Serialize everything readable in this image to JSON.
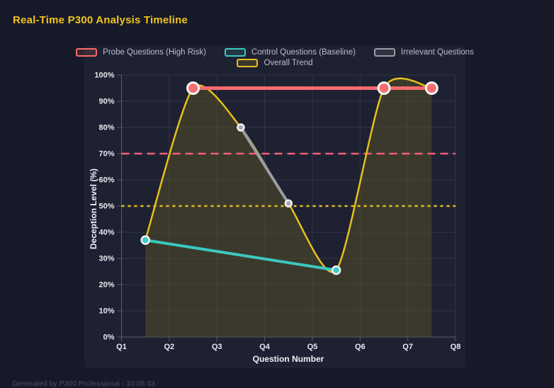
{
  "page": {
    "title": "Real-Time P300 Analysis Timeline",
    "footer": "Generated by P300 Professional - 10:05:43"
  },
  "colors": {
    "page_bg": "#161928",
    "panel_bg": "#1e2132",
    "title": "#f2c41d",
    "grid": "rgba(255,255,255,0.09)",
    "axis_border": "rgba(255,255,255,0.20)",
    "tick_mark": "rgba(255,255,255,0.25)",
    "tick_text": "#e8e9ee",
    "axis_title_text": "#f0f1f6",
    "legend_text": "#bcbec8",
    "footer_text": "#4a4f66",
    "point_ring": "#f2f3f5"
  },
  "legend": {
    "items": [
      {
        "label": "Probe Questions (High Risk)",
        "color": "#f56c6c",
        "fill": "rgba(245,108,108,0.14)"
      },
      {
        "label": "Control Questions (Baseline)",
        "color": "#3cc8bf",
        "fill": "rgba(60,200,191,0.14)"
      },
      {
        "label": "Irrelevant Questions",
        "color": "#9a9aa2",
        "fill": "rgba(154,154,162,0.14)"
      },
      {
        "label": "Overall Trend",
        "color": "#e5c11a",
        "fill": "rgba(229,193,26,0.14)"
      }
    ]
  },
  "chart_data": {
    "type": "line",
    "title": "Real-Time P300 Analysis Timeline",
    "xlabel": "Question Number",
    "ylabel": "Deception Level (%)",
    "x_range": [
      1,
      8
    ],
    "ylim": [
      0,
      100
    ],
    "grid": true,
    "legend_position": "top",
    "x_ticks": [
      {
        "value": 1,
        "label": "Q1"
      },
      {
        "value": 2,
        "label": "Q2"
      },
      {
        "value": 3,
        "label": "Q3"
      },
      {
        "value": 4,
        "label": "Q4"
      },
      {
        "value": 5,
        "label": "Q5"
      },
      {
        "value": 6,
        "label": "Q6"
      },
      {
        "value": 7,
        "label": "Q7"
      },
      {
        "value": 8,
        "label": "Q8"
      }
    ],
    "y_ticks": [
      {
        "value": 0,
        "label": "0%"
      },
      {
        "value": 10,
        "label": "10%"
      },
      {
        "value": 20,
        "label": "20%"
      },
      {
        "value": 30,
        "label": "30%"
      },
      {
        "value": 40,
        "label": "40%"
      },
      {
        "value": 50,
        "label": "50%"
      },
      {
        "value": 60,
        "label": "60%"
      },
      {
        "value": 70,
        "label": "70%"
      },
      {
        "value": 80,
        "label": "80%"
      },
      {
        "value": 90,
        "label": "90%"
      },
      {
        "value": 100,
        "label": "100%"
      }
    ],
    "series": [
      {
        "name": "Overall Trend",
        "id": "overall-trend",
        "color": "#e5c11a",
        "line_width": 2.5,
        "smooth": true,
        "area_fill": "#585125",
        "area_opacity": 0.5,
        "point_radius": 0,
        "points": [
          {
            "x": 1.5,
            "y": 37
          },
          {
            "x": 2.5,
            "y": 95
          },
          {
            "x": 3.5,
            "y": 80
          },
          {
            "x": 4.5,
            "y": 51
          },
          {
            "x": 5.5,
            "y": 25.5
          },
          {
            "x": 6.5,
            "y": 95
          },
          {
            "x": 7.5,
            "y": 95
          }
        ]
      },
      {
        "name": "Irrelevant Questions",
        "id": "irrelevant-questions",
        "color": "#9a9aa2",
        "point_color": "#a9a9b1",
        "line_width": 4,
        "point_radius": 4.5,
        "point_ring_width": 2.5,
        "points": [
          {
            "x": 3.5,
            "y": 80
          },
          {
            "x": 4.5,
            "y": 51
          }
        ]
      },
      {
        "name": "Control Questions (Baseline)",
        "id": "control-questions",
        "color": "#3cc8bf",
        "point_color": "#3fcdc4",
        "line_width": 4,
        "point_radius": 5.5,
        "point_ring_width": 2.5,
        "points": [
          {
            "x": 1.5,
            "y": 37
          },
          {
            "x": 5.5,
            "y": 25.5
          }
        ]
      },
      {
        "name": "Probe Questions (High Risk)",
        "id": "probe-questions",
        "color": "#f56c6c",
        "point_color": "#f56e6e",
        "line_width": 5,
        "point_radius": 8,
        "point_ring_width": 3,
        "points": [
          {
            "x": 2.5,
            "y": 95
          },
          {
            "x": 6.5,
            "y": 95
          },
          {
            "x": 7.5,
            "y": 95
          }
        ]
      }
    ],
    "thresholds": [
      {
        "y": 70,
        "color": "#f25f78",
        "dash": "11 7",
        "width": 2.4
      },
      {
        "y": 50,
        "color": "#e5c11a",
        "dash": "4 5",
        "width": 2.4
      }
    ]
  }
}
